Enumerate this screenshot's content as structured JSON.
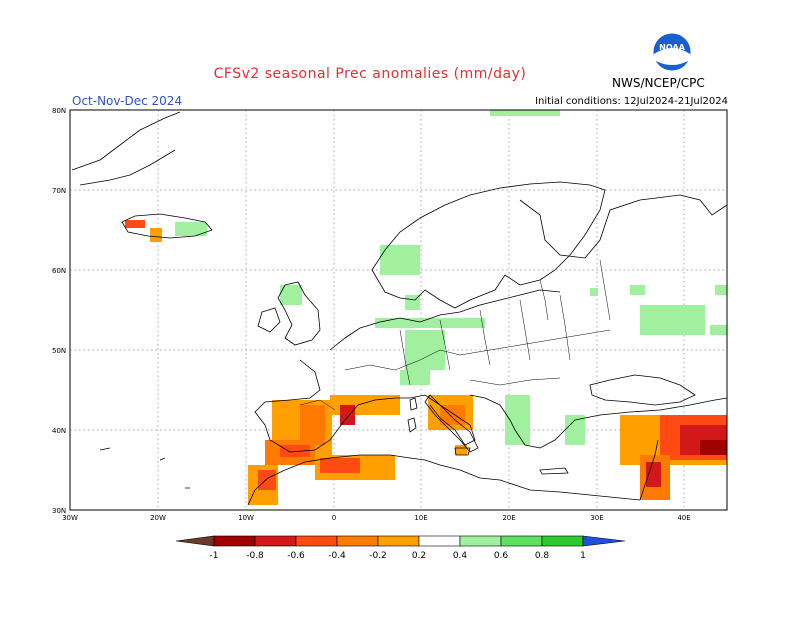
{
  "header": {
    "title": "CFSv2 seasonal Prec anomalies (mm/day)",
    "period": "Oct-Nov-Dec 2024",
    "initial_conditions": "Initial conditions: 12Jul2024-21Jul2024",
    "agency": "NWS/NCEP/CPC",
    "logo_text": "NOAA"
  },
  "map": {
    "lon_range": [
      -30,
      45
    ],
    "lat_range": [
      30,
      80
    ],
    "lon_ticks": [
      "30W",
      "20W",
      "10W",
      "0",
      "10E",
      "20E",
      "30E",
      "40E"
    ],
    "lat_ticks": [
      "30N",
      "40N",
      "50N",
      "60N",
      "70N",
      "80N"
    ]
  },
  "colorbar": {
    "labels": [
      "-1",
      "-0.8",
      "-0.6",
      "-0.4",
      "-0.2",
      "0.2",
      "0.4",
      "0.6",
      "0.8",
      "1"
    ],
    "colors": {
      "below_min": "#6b3a2a",
      "m1": "#a00000",
      "m08": "#d21818",
      "m06": "#ff4a14",
      "m04": "#ff7a00",
      "m02": "#ffa000",
      "p02": "#a0f0a0",
      "p04": "#60e060",
      "p06": "#30c830",
      "p08": "#10a010",
      "above_max": "#2050e0"
    }
  }
}
